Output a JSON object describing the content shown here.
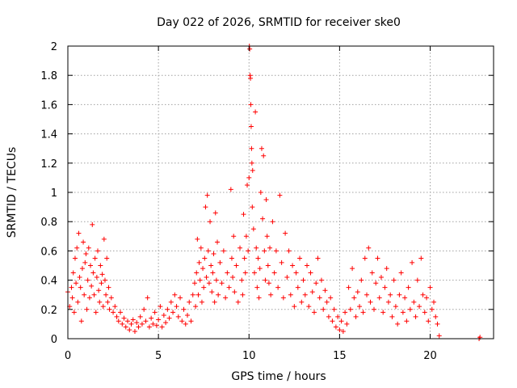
{
  "chart_data": {
    "type": "scatter",
    "title": "Day 022 of 2026, SRMTID for receiver ske0",
    "xlabel": "GPS time / hours",
    "ylabel": "SRMTID / TECUs",
    "xlim": [
      0,
      23.5
    ],
    "ylim": [
      0,
      2
    ],
    "xticks": [
      0,
      5,
      10,
      15,
      20
    ],
    "yticks": [
      0,
      0.2,
      0.4,
      0.6,
      0.8,
      1,
      1.2,
      1.4,
      1.6,
      1.8,
      2
    ],
    "ytick_labels": [
      "0",
      "0.2",
      "0.4",
      "0.6",
      "0.8",
      "1",
      "1.2",
      "1.4",
      "1.6",
      "1.8",
      "2"
    ],
    "xtick_labels": [
      "0",
      "5",
      "10",
      "15",
      "20"
    ],
    "grid": true,
    "marker": "+",
    "color": "#ff0000",
    "series": [
      {
        "name": "SRMTID",
        "points": [
          [
            0.0,
            0.32
          ],
          [
            0.1,
            0.22
          ],
          [
            0.2,
            0.35
          ],
          [
            0.25,
            0.28
          ],
          [
            0.3,
            0.45
          ],
          [
            0.35,
            0.18
          ],
          [
            0.4,
            0.55
          ],
          [
            0.45,
            0.38
          ],
          [
            0.5,
            0.62
          ],
          [
            0.55,
            0.25
          ],
          [
            0.6,
            0.72
          ],
          [
            0.65,
            0.42
          ],
          [
            0.7,
            0.35
          ],
          [
            0.75,
            0.12
          ],
          [
            0.8,
            0.48
          ],
          [
            0.85,
            0.66
          ],
          [
            0.9,
            0.3
          ],
          [
            0.95,
            0.52
          ],
          [
            1.0,
            0.58
          ],
          [
            1.05,
            0.2
          ],
          [
            1.1,
            0.4
          ],
          [
            1.15,
            0.62
          ],
          [
            1.2,
            0.28
          ],
          [
            1.25,
            0.5
          ],
          [
            1.3,
            0.36
          ],
          [
            1.35,
            0.78
          ],
          [
            1.4,
            0.45
          ],
          [
            1.45,
            0.3
          ],
          [
            1.5,
            0.55
          ],
          [
            1.55,
            0.18
          ],
          [
            1.6,
            0.42
          ],
          [
            1.65,
            0.6
          ],
          [
            1.7,
            0.33
          ],
          [
            1.75,
            0.25
          ],
          [
            1.8,
            0.5
          ],
          [
            1.85,
            0.38
          ],
          [
            1.9,
            0.44
          ],
          [
            1.95,
            0.22
          ],
          [
            2.0,
            0.68
          ],
          [
            2.05,
            0.4
          ],
          [
            2.1,
            0.3
          ],
          [
            2.15,
            0.55
          ],
          [
            2.2,
            0.25
          ],
          [
            2.25,
            0.35
          ],
          [
            2.3,
            0.2
          ],
          [
            2.4,
            0.28
          ],
          [
            2.5,
            0.18
          ],
          [
            2.6,
            0.22
          ],
          [
            2.7,
            0.15
          ],
          [
            2.8,
            0.12
          ],
          [
            2.9,
            0.18
          ],
          [
            3.0,
            0.1
          ],
          [
            3.1,
            0.14
          ],
          [
            3.2,
            0.08
          ],
          [
            3.3,
            0.12
          ],
          [
            3.4,
            0.06
          ],
          [
            3.5,
            0.1
          ],
          [
            3.6,
            0.13
          ],
          [
            3.7,
            0.05
          ],
          [
            3.8,
            0.11
          ],
          [
            3.9,
            0.08
          ],
          [
            4.0,
            0.15
          ],
          [
            4.1,
            0.1
          ],
          [
            4.2,
            0.2
          ],
          [
            4.3,
            0.12
          ],
          [
            4.4,
            0.28
          ],
          [
            4.5,
            0.08
          ],
          [
            4.6,
            0.14
          ],
          [
            4.7,
            0.1
          ],
          [
            4.8,
            0.18
          ],
          [
            4.9,
            0.09
          ],
          [
            5.0,
            0.13
          ],
          [
            5.1,
            0.22
          ],
          [
            5.2,
            0.08
          ],
          [
            5.3,
            0.16
          ],
          [
            5.4,
            0.11
          ],
          [
            5.5,
            0.2
          ],
          [
            5.6,
            0.14
          ],
          [
            5.7,
            0.25
          ],
          [
            5.8,
            0.18
          ],
          [
            5.9,
            0.3
          ],
          [
            6.0,
            0.22
          ],
          [
            6.1,
            0.15
          ],
          [
            6.2,
            0.28
          ],
          [
            6.3,
            0.12
          ],
          [
            6.4,
            0.2
          ],
          [
            6.5,
            0.1
          ],
          [
            6.6,
            0.16
          ],
          [
            6.7,
            0.25
          ],
          [
            6.8,
            0.12
          ],
          [
            6.9,
            0.3
          ],
          [
            7.0,
            0.38
          ],
          [
            7.05,
            0.22
          ],
          [
            7.1,
            0.45
          ],
          [
            7.15,
            0.68
          ],
          [
            7.2,
            0.3
          ],
          [
            7.25,
            0.52
          ],
          [
            7.3,
            0.4
          ],
          [
            7.35,
            0.62
          ],
          [
            7.4,
            0.25
          ],
          [
            7.45,
            0.48
          ],
          [
            7.5,
            0.35
          ],
          [
            7.55,
            0.55
          ],
          [
            7.6,
            0.9
          ],
          [
            7.65,
            0.42
          ],
          [
            7.7,
            0.98
          ],
          [
            7.75,
            0.6
          ],
          [
            7.8,
            0.38
          ],
          [
            7.85,
            0.8
          ],
          [
            7.9,
            0.5
          ],
          [
            7.95,
            0.32
          ],
          [
            8.0,
            0.45
          ],
          [
            8.05,
            0.58
          ],
          [
            8.1,
            0.25
          ],
          [
            8.15,
            0.86
          ],
          [
            8.2,
            0.4
          ],
          [
            8.25,
            0.66
          ],
          [
            8.3,
            0.3
          ],
          [
            8.4,
            0.52
          ],
          [
            8.5,
            0.38
          ],
          [
            8.6,
            0.6
          ],
          [
            8.7,
            0.28
          ],
          [
            8.8,
            0.45
          ],
          [
            8.9,
            0.35
          ],
          [
            9.0,
            1.02
          ],
          [
            9.05,
            0.55
          ],
          [
            9.1,
            0.42
          ],
          [
            9.15,
            0.7
          ],
          [
            9.2,
            0.32
          ],
          [
            9.3,
            0.5
          ],
          [
            9.4,
            0.25
          ],
          [
            9.5,
            0.62
          ],
          [
            9.6,
            0.4
          ],
          [
            9.65,
            0.3
          ],
          [
            9.7,
            0.85
          ],
          [
            9.75,
            0.55
          ],
          [
            9.8,
            0.45
          ],
          [
            9.85,
            0.7
          ],
          [
            9.9,
            1.05
          ],
          [
            9.95,
            0.6
          ],
          [
            10.0,
            1.1
          ],
          [
            10.02,
            2.0
          ],
          [
            10.04,
            1.98
          ],
          [
            10.06,
            1.8
          ],
          [
            10.08,
            1.78
          ],
          [
            10.1,
            1.6
          ],
          [
            10.12,
            1.45
          ],
          [
            10.14,
            1.3
          ],
          [
            10.16,
            1.2
          ],
          [
            10.18,
            0.9
          ],
          [
            10.2,
            1.15
          ],
          [
            10.25,
            0.75
          ],
          [
            10.3,
            0.45
          ],
          [
            10.35,
            1.55
          ],
          [
            10.4,
            0.62
          ],
          [
            10.45,
            0.35
          ],
          [
            10.5,
            0.55
          ],
          [
            10.55,
            0.28
          ],
          [
            10.6,
            0.48
          ],
          [
            10.65,
            1.0
          ],
          [
            10.7,
            1.3
          ],
          [
            10.75,
            0.82
          ],
          [
            10.8,
            1.25
          ],
          [
            10.85,
            0.6
          ],
          [
            10.9,
            0.4
          ],
          [
            10.95,
            0.95
          ],
          [
            11.0,
            0.7
          ],
          [
            11.05,
            0.5
          ],
          [
            11.1,
            0.38
          ],
          [
            11.15,
            0.62
          ],
          [
            11.2,
            0.3
          ],
          [
            11.3,
            0.8
          ],
          [
            11.4,
            0.45
          ],
          [
            11.5,
            0.6
          ],
          [
            11.6,
            0.35
          ],
          [
            11.7,
            0.98
          ],
          [
            11.8,
            0.52
          ],
          [
            11.9,
            0.28
          ],
          [
            12.0,
            0.72
          ],
          [
            12.1,
            0.42
          ],
          [
            12.2,
            0.6
          ],
          [
            12.3,
            0.3
          ],
          [
            12.4,
            0.5
          ],
          [
            12.5,
            0.22
          ],
          [
            12.6,
            0.45
          ],
          [
            12.7,
            0.35
          ],
          [
            12.8,
            0.55
          ],
          [
            12.9,
            0.25
          ],
          [
            13.0,
            0.4
          ],
          [
            13.1,
            0.3
          ],
          [
            13.2,
            0.5
          ],
          [
            13.3,
            0.22
          ],
          [
            13.4,
            0.45
          ],
          [
            13.5,
            0.32
          ],
          [
            13.6,
            0.18
          ],
          [
            13.7,
            0.38
          ],
          [
            13.8,
            0.55
          ],
          [
            13.9,
            0.28
          ],
          [
            14.0,
            0.4
          ],
          [
            14.1,
            0.2
          ],
          [
            14.2,
            0.33
          ],
          [
            14.3,
            0.25
          ],
          [
            14.4,
            0.15
          ],
          [
            14.5,
            0.28
          ],
          [
            14.6,
            0.12
          ],
          [
            14.7,
            0.2
          ],
          [
            14.8,
            0.08
          ],
          [
            14.9,
            0.15
          ],
          [
            15.0,
            0.06
          ],
          [
            15.1,
            0.12
          ],
          [
            15.2,
            0.05
          ],
          [
            15.3,
            0.18
          ],
          [
            15.4,
            0.1
          ],
          [
            15.5,
            0.35
          ],
          [
            15.6,
            0.2
          ],
          [
            15.7,
            0.48
          ],
          [
            15.8,
            0.28
          ],
          [
            15.9,
            0.15
          ],
          [
            16.0,
            0.32
          ],
          [
            16.1,
            0.22
          ],
          [
            16.2,
            0.4
          ],
          [
            16.3,
            0.18
          ],
          [
            16.4,
            0.55
          ],
          [
            16.5,
            0.3
          ],
          [
            16.6,
            0.62
          ],
          [
            16.7,
            0.25
          ],
          [
            16.8,
            0.45
          ],
          [
            16.9,
            0.2
          ],
          [
            17.0,
            0.38
          ],
          [
            17.1,
            0.55
          ],
          [
            17.2,
            0.28
          ],
          [
            17.3,
            0.42
          ],
          [
            17.4,
            0.18
          ],
          [
            17.5,
            0.35
          ],
          [
            17.6,
            0.48
          ],
          [
            17.7,
            0.25
          ],
          [
            17.8,
            0.3
          ],
          [
            17.9,
            0.15
          ],
          [
            18.0,
            0.4
          ],
          [
            18.1,
            0.22
          ],
          [
            18.2,
            0.1
          ],
          [
            18.3,
            0.3
          ],
          [
            18.4,
            0.45
          ],
          [
            18.5,
            0.18
          ],
          [
            18.6,
            0.28
          ],
          [
            18.7,
            0.12
          ],
          [
            18.8,
            0.35
          ],
          [
            18.9,
            0.2
          ],
          [
            19.0,
            0.52
          ],
          [
            19.1,
            0.25
          ],
          [
            19.2,
            0.15
          ],
          [
            19.3,
            0.4
          ],
          [
            19.4,
            0.22
          ],
          [
            19.5,
            0.55
          ],
          [
            19.6,
            0.3
          ],
          [
            19.7,
            0.18
          ],
          [
            19.8,
            0.28
          ],
          [
            19.9,
            0.12
          ],
          [
            20.0,
            0.35
          ],
          [
            20.1,
            0.2
          ],
          [
            20.2,
            0.25
          ],
          [
            20.3,
            0.15
          ],
          [
            20.4,
            0.1
          ],
          [
            20.5,
            0.02
          ],
          [
            22.7,
            0.0
          ],
          [
            22.75,
            0.01
          ]
        ]
      }
    ]
  }
}
